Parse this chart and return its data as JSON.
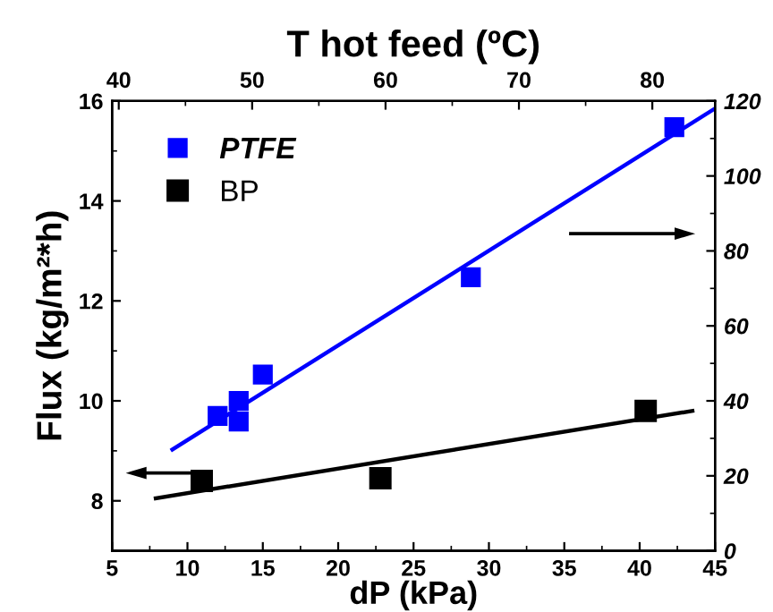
{
  "chart_data": {
    "type": "scatter",
    "xlabel": "dP (kPa)",
    "ylabel": "Flux (kg/m²*h)",
    "x2label": "T hot feed (ºC)",
    "xlim": [
      5,
      45
    ],
    "xticks": [
      5,
      10,
      15,
      20,
      25,
      30,
      35,
      40,
      45
    ],
    "ylim": [
      7,
      16
    ],
    "yticks": [
      8,
      10,
      12,
      14,
      16
    ],
    "y2lim": [
      0,
      120
    ],
    "y2ticks": [
      0,
      20,
      40,
      60,
      80,
      100,
      120
    ],
    "x2lim": [
      39.5,
      84.7
    ],
    "x2ticks": [
      40,
      50,
      60,
      70,
      80
    ],
    "marker": "square",
    "legend": "top left",
    "grid": false,
    "series": [
      {
        "name": "PTFE",
        "axis": "y2",
        "color": "#0000ff",
        "x": [
          12.0,
          13.3,
          13.4,
          13.4,
          15.0,
          28.8,
          42.3
        ],
        "values": [
          36,
          null,
          40,
          34.5,
          47,
          73,
          113
        ]
      },
      {
        "name": "BP",
        "color": "#000000",
        "x": [
          10.95,
          22.8,
          40.4
        ],
        "values": [
          8.4,
          8.45,
          9.8
        ]
      },
      {
        "type": "line",
        "marker": "none",
        "axis": "y2",
        "color": "#0000ff",
        "x": [
          9.0,
          45.0
        ],
        "values": [
          27,
          118
        ]
      },
      {
        "type": "line",
        "marker": "none",
        "color": "#000000",
        "x": [
          7.9,
          43.5
        ],
        "values": [
          8.05,
          9.8
        ]
      }
    ]
  }
}
